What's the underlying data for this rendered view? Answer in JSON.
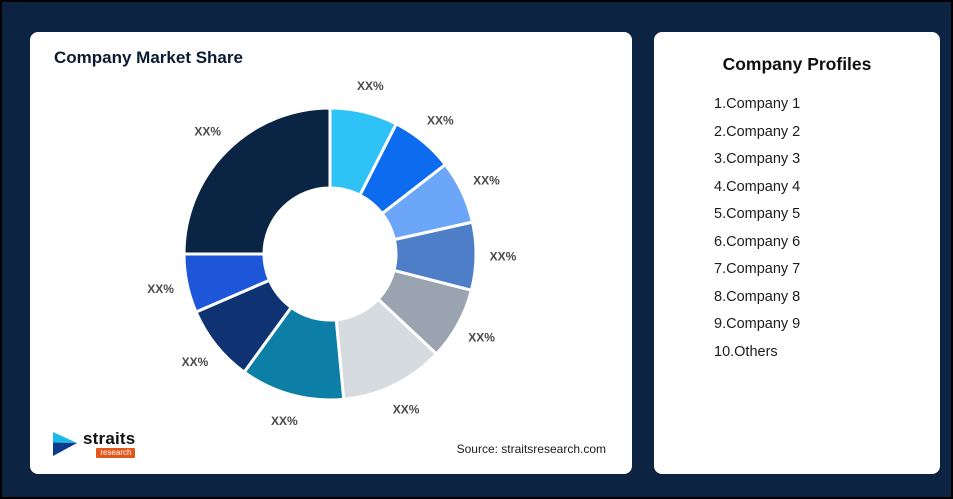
{
  "page": {
    "background": "#0d2342"
  },
  "chart_card": {
    "title": "Company Market Share",
    "source": "Source: straitsresearch.com"
  },
  "logo": {
    "brand": "straits",
    "sub": "research"
  },
  "profiles": {
    "title": "Company Profiles",
    "items": [
      "1.Company 1",
      "2.Company 2",
      "3.Company 3",
      "4.Company 4",
      "5.Company 5",
      "6.Company 6",
      "7.Company 7",
      "8.Company 8",
      "9.Company 9",
      "10.Others"
    ]
  },
  "chart_data": {
    "type": "pie",
    "subtype": "donut",
    "title": "Company Market Share",
    "categories": [
      "Company 1",
      "Company 2",
      "Company 3",
      "Company 4",
      "Company 5",
      "Company 6",
      "Company 7",
      "Company 8",
      "Company 9",
      "Others"
    ],
    "values": [
      7.5,
      7,
      7,
      7.5,
      8,
      11.5,
      11.5,
      8.5,
      6.5,
      25
    ],
    "slice_label": "XX%",
    "colors": [
      "#2fc2f7",
      "#0d6bf0",
      "#6ba6f8",
      "#4f7ec9",
      "#9aa4b0",
      "#d6dbe0",
      "#0d7fa6",
      "#0e3272",
      "#1d56d8",
      "#0a2443"
    ],
    "legend": "none",
    "start_angle_deg": 0,
    "direction": "clockwise",
    "inner_radius_ratio": 0.45
  }
}
